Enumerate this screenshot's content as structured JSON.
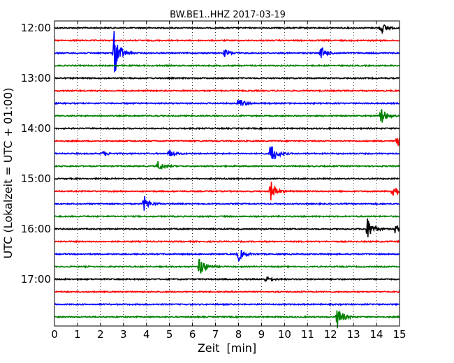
{
  "chart_data": {
    "type": "line",
    "title": "BW.BE1..HHZ 2017-03-19",
    "xlabel": "Zeit  [min]",
    "ylabel": "UTC (Lokalzeit = UTC + 01:00)",
    "xlim": [
      0,
      15
    ],
    "x_ticks": [
      "0",
      "1",
      "2",
      "3",
      "4",
      "5",
      "6",
      "7",
      "8",
      "9",
      "10",
      "11",
      "12",
      "13",
      "14",
      "15"
    ],
    "y_tick_labels": [
      "12:00",
      "13:00",
      "14:00",
      "15:00",
      "16:00",
      "17:00"
    ],
    "grid": true,
    "row_colors": [
      "#000000",
      "#ff0000",
      "#0000ff",
      "#008000"
    ],
    "rows": [
      {
        "time": "12:00",
        "events": [
          {
            "t": 14.2,
            "a": 0.45
          }
        ]
      },
      {
        "time": "12:15",
        "events": []
      },
      {
        "time": "12:30",
        "events": [
          {
            "t": 2.6,
            "a": 1.9
          },
          {
            "t": 7.4,
            "a": 0.3
          },
          {
            "t": 11.6,
            "a": 0.55
          }
        ]
      },
      {
        "time": "12:45",
        "events": []
      },
      {
        "time": "13:00",
        "events": []
      },
      {
        "time": "13:15",
        "events": []
      },
      {
        "time": "13:30",
        "events": [
          {
            "t": 8.0,
            "a": 0.45
          }
        ]
      },
      {
        "time": "13:45",
        "events": [
          {
            "t": 14.2,
            "a": 0.7
          }
        ]
      },
      {
        "time": "14:00",
        "events": []
      },
      {
        "time": "14:15",
        "events": [
          {
            "t": 14.9,
            "a": 0.4
          }
        ]
      },
      {
        "time": "14:30",
        "events": [
          {
            "t": 2.1,
            "a": 0.2
          },
          {
            "t": 5.0,
            "a": 0.3
          },
          {
            "t": 9.4,
            "a": 1.0
          }
        ]
      },
      {
        "time": "14:45",
        "events": [
          {
            "t": 4.5,
            "a": 0.4
          }
        ]
      },
      {
        "time": "15:00",
        "events": []
      },
      {
        "time": "15:15",
        "events": [
          {
            "t": 9.4,
            "a": 0.85
          },
          {
            "t": 14.7,
            "a": 0.7
          }
        ]
      },
      {
        "time": "15:30",
        "events": [
          {
            "t": 3.9,
            "a": 0.65
          }
        ]
      },
      {
        "time": "15:45",
        "events": []
      },
      {
        "time": "16:00",
        "events": [
          {
            "t": 13.6,
            "a": 0.9
          },
          {
            "t": 14.8,
            "a": 0.35
          }
        ]
      },
      {
        "time": "16:15",
        "events": []
      },
      {
        "time": "16:30",
        "events": [
          {
            "t": 8.0,
            "a": 0.55
          }
        ]
      },
      {
        "time": "16:45",
        "events": [
          {
            "t": 6.3,
            "a": 0.9
          }
        ]
      },
      {
        "time": "17:00",
        "events": [
          {
            "t": 9.2,
            "a": 0.25
          }
        ]
      },
      {
        "time": "17:15",
        "events": []
      },
      {
        "time": "17:30",
        "events": []
      },
      {
        "time": "17:45",
        "events": [
          {
            "t": 12.3,
            "a": 0.9
          }
        ]
      }
    ]
  }
}
